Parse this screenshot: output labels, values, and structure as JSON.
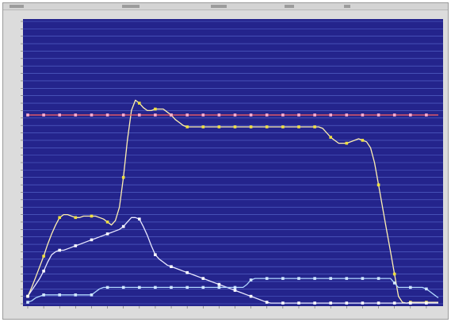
{
  "chart_data": {
    "type": "line",
    "title": "",
    "xlabel": "",
    "ylabel": "",
    "ylim": [
      0,
      19
    ],
    "grid": true,
    "background_color": "#24248c",
    "x": [
      1,
      2,
      3,
      4,
      5,
      6,
      7,
      8,
      9,
      10,
      11,
      12,
      13,
      14,
      15,
      16,
      17,
      18,
      19,
      20,
      21,
      22,
      23,
      24,
      25,
      26,
      27,
      28,
      29,
      30,
      31,
      32,
      33,
      34,
      35,
      36,
      37,
      38,
      39,
      40,
      41,
      42,
      43,
      44,
      45,
      46,
      47,
      48,
      49,
      50,
      51,
      52,
      53,
      54,
      55,
      56,
      57,
      58,
      59,
      60,
      61,
      62,
      63,
      64,
      65,
      66,
      67,
      68,
      69,
      70,
      71,
      72,
      73,
      74,
      75,
      76,
      77,
      78,
      79,
      80,
      81,
      82,
      83,
      84,
      85,
      86,
      87,
      88,
      89,
      90,
      91,
      92,
      93,
      94,
      95,
      96,
      97,
      98,
      99,
      100,
      101,
      102,
      103,
      104
    ],
    "x_range": [
      1,
      104
    ],
    "series": [
      {
        "name": "",
        "color": "#fff0b0",
        "marker_color": "#f0e040",
        "marker_every": 4,
        "values": [
          0.5,
          1.1,
          1.8,
          2.5,
          3.2,
          4.0,
          4.7,
          5.3,
          5.8,
          6.0,
          6.0,
          5.9,
          5.8,
          5.8,
          5.9,
          5.9,
          5.9,
          5.9,
          5.8,
          5.7,
          5.5,
          5.3,
          5.6,
          6.5,
          8.5,
          11.0,
          13.0,
          13.7,
          13.5,
          13.2,
          13.0,
          13.0,
          13.1,
          13.1,
          13.1,
          12.9,
          12.7,
          12.4,
          12.2,
          12.0,
          11.9,
          11.9,
          11.9,
          11.9,
          11.9,
          11.9,
          11.9,
          11.9,
          11.9,
          11.9,
          11.9,
          11.9,
          11.9,
          11.9,
          11.9,
          11.9,
          11.9,
          11.9,
          11.9,
          11.9,
          11.9,
          11.9,
          11.9,
          11.9,
          11.9,
          11.9,
          11.9,
          11.9,
          11.9,
          11.9,
          11.9,
          11.9,
          11.9,
          11.9,
          11.8,
          11.5,
          11.2,
          11.0,
          10.8,
          10.8,
          10.8,
          10.9,
          11.0,
          11.1,
          11.0,
          10.9,
          10.5,
          9.5,
          8.0,
          6.5,
          5.0,
          3.5,
          2.0,
          0.5,
          0.1,
          0.05,
          0.1,
          0.1,
          0.1,
          0.1,
          0.1,
          0.1,
          0.1,
          0.1
        ]
      },
      {
        "name": "",
        "color": "#e8e8ff",
        "marker_color": "#ffffff",
        "marker_every": 4,
        "values": [
          0.5,
          0.9,
          1.3,
          1.7,
          2.2,
          2.8,
          3.3,
          3.5,
          3.6,
          3.6,
          3.7,
          3.8,
          3.9,
          4.0,
          4.1,
          4.2,
          4.3,
          4.4,
          4.5,
          4.6,
          4.7,
          4.8,
          4.9,
          5.0,
          5.2,
          5.5,
          5.8,
          5.8,
          5.7,
          5.2,
          4.6,
          3.9,
          3.3,
          3.0,
          2.8,
          2.6,
          2.5,
          2.4,
          2.3,
          2.2,
          2.1,
          2.0,
          1.9,
          1.8,
          1.7,
          1.6,
          1.5,
          1.4,
          1.3,
          1.2,
          1.1,
          1.0,
          0.9,
          0.8,
          0.7,
          0.6,
          0.5,
          0.4,
          0.3,
          0.2,
          0.1,
          0.05,
          0.05,
          0.05,
          0.05,
          0.05,
          0.05,
          0.05,
          0.05,
          0.05,
          0.05,
          0.05,
          0.05,
          0.05,
          0.05,
          0.05,
          0.05,
          0.05,
          0.05,
          0.05,
          0.05,
          0.05,
          0.05,
          0.05,
          0.05,
          0.05,
          0.05,
          0.05,
          0.05,
          0.05,
          0.05,
          0.05,
          0.05,
          0.05,
          0.05,
          0.05,
          0.05,
          0.05,
          0.05,
          0.05,
          0.05,
          0.05,
          0.05,
          0.05
        ]
      },
      {
        "name": "",
        "color": "#b0d8ff",
        "marker_color": "#d0e8ff",
        "marker_every": 4,
        "values": [
          0.1,
          0.2,
          0.4,
          0.5,
          0.6,
          0.6,
          0.6,
          0.6,
          0.6,
          0.6,
          0.6,
          0.6,
          0.6,
          0.6,
          0.6,
          0.6,
          0.6,
          0.8,
          1.0,
          1.1,
          1.1,
          1.1,
          1.1,
          1.1,
          1.1,
          1.1,
          1.1,
          1.1,
          1.1,
          1.1,
          1.1,
          1.1,
          1.1,
          1.1,
          1.1,
          1.1,
          1.1,
          1.1,
          1.1,
          1.1,
          1.1,
          1.1,
          1.1,
          1.1,
          1.1,
          1.1,
          1.1,
          1.1,
          1.1,
          1.1,
          1.1,
          1.1,
          1.1,
          1.1,
          1.1,
          1.3,
          1.6,
          1.7,
          1.7,
          1.7,
          1.7,
          1.7,
          1.7,
          1.7,
          1.7,
          1.7,
          1.7,
          1.7,
          1.7,
          1.7,
          1.7,
          1.7,
          1.7,
          1.7,
          1.7,
          1.7,
          1.7,
          1.7,
          1.7,
          1.7,
          1.7,
          1.7,
          1.7,
          1.7,
          1.7,
          1.7,
          1.7,
          1.7,
          1.7,
          1.7,
          1.7,
          1.7,
          1.4,
          1.1,
          1.1,
          1.1,
          1.1,
          1.1,
          1.1,
          1.1,
          1.0,
          0.8,
          0.6,
          0.4
        ]
      },
      {
        "name": "",
        "color": "#ff6060",
        "marker_color": "#ffb0d0",
        "marker_every": 4,
        "values": [
          12.7,
          12.7,
          12.7,
          12.7,
          12.7,
          12.7,
          12.7,
          12.7,
          12.7,
          12.7,
          12.7,
          12.7,
          12.7,
          12.7,
          12.7,
          12.7,
          12.7,
          12.7,
          12.7,
          12.7,
          12.7,
          12.7,
          12.7,
          12.7,
          12.7,
          12.7,
          12.7,
          12.7,
          12.7,
          12.7,
          12.7,
          12.7,
          12.7,
          12.7,
          12.7,
          12.7,
          12.7,
          12.7,
          12.7,
          12.7,
          12.7,
          12.7,
          12.7,
          12.7,
          12.7,
          12.7,
          12.7,
          12.7,
          12.7,
          12.7,
          12.7,
          12.7,
          12.7,
          12.7,
          12.7,
          12.7,
          12.7,
          12.7,
          12.7,
          12.7,
          12.7,
          12.7,
          12.7,
          12.7,
          12.7,
          12.7,
          12.7,
          12.7,
          12.7,
          12.7,
          12.7,
          12.7,
          12.7,
          12.7,
          12.7,
          12.7,
          12.7,
          12.7,
          12.7,
          12.7,
          12.7,
          12.7,
          12.7,
          12.7,
          12.7,
          12.7,
          12.7,
          12.7,
          12.7,
          12.7,
          12.7,
          12.7,
          12.7,
          12.7,
          12.7,
          12.7,
          12.7,
          12.7,
          12.7,
          12.7,
          12.7,
          12.7,
          12.7,
          12.7
        ]
      }
    ]
  }
}
